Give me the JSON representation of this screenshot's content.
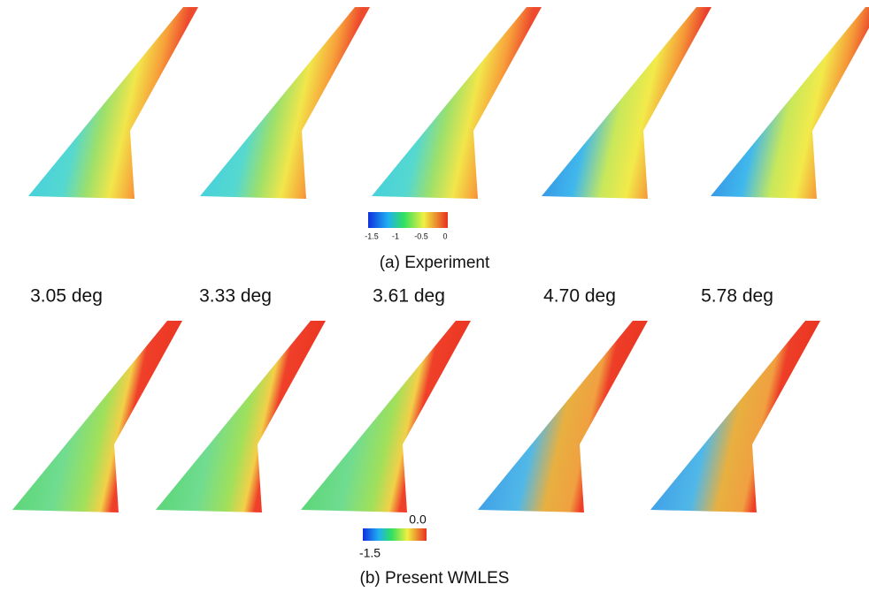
{
  "figure": {
    "panel_a": {
      "caption": "(a) Experiment",
      "colorbar_labels": [
        "-1.5",
        "-1",
        "-0.5",
        "0"
      ]
    },
    "angles": [
      "3.05 deg",
      "3.33 deg",
      "3.61 deg",
      "4.70 deg",
      "5.78 deg"
    ],
    "panel_b": {
      "caption": "(b) Present WMLES",
      "colorbar_labels": [
        "0.0",
        "-1.5"
      ]
    }
  }
}
